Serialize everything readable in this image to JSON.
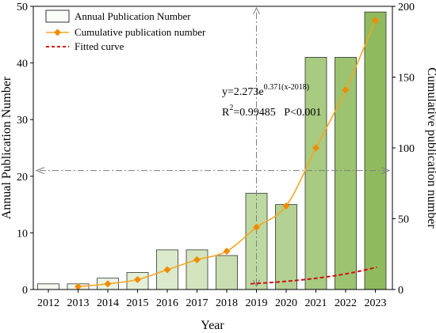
{
  "chart_data": {
    "type": "bar",
    "categories": [
      "2012",
      "2013",
      "2014",
      "2015",
      "2016",
      "2017",
      "2018",
      "2019",
      "2020",
      "2021",
      "2022",
      "2023"
    ],
    "series": [
      {
        "name": "Annual Publication Number",
        "type": "bar",
        "axis": "left",
        "values": [
          1,
          1,
          2,
          3,
          7,
          7,
          6,
          17,
          15,
          41,
          41,
          49
        ]
      },
      {
        "name": "Cumulative publication number",
        "type": "line",
        "axis": "right",
        "marker": "diamond",
        "x": [
          "2013",
          "2014",
          "2015",
          "2016",
          "2017",
          "2018",
          "2019",
          "2020",
          "2021",
          "2022",
          "2023"
        ],
        "values": [
          2,
          4,
          7,
          14,
          21,
          27,
          44,
          59,
          100,
          141,
          190
        ]
      },
      {
        "name": "Fitted curve",
        "type": "line-dashed",
        "axis": "right",
        "formula": "y=2.273e^{0.371(x-2018)}"
      }
    ],
    "xlabel": "Year",
    "ylabel_left": "Annual Publication Number",
    "ylabel_right": "Cumulative publication number",
    "ylim_left": [
      0,
      50
    ],
    "yticks_left": [
      0,
      10,
      20,
      30,
      40,
      50
    ],
    "ylim_right": [
      0,
      200
    ],
    "yticks_right": [
      0,
      50,
      100,
      150,
      200
    ],
    "annotations": {
      "equation_base": "y=2.273e",
      "equation_exp": "0.371(x-2018)",
      "r2_prefix": "R",
      "r2_sup": "2",
      "r2_rest": "=0.99485   P<0.001"
    },
    "reference_lines": {
      "vertical_x": "2019",
      "horizontal_y_left": 21
    },
    "legend": {
      "placement": "top-left"
    },
    "grid": false,
    "colors": {
      "bar_light": "#f4f9ee",
      "bar_dark": "#8fbb5e",
      "bar_edge": "#333333",
      "cumulative_line": "#f5a623",
      "cumulative_marker": "#f08c00",
      "fitted": "#d01010",
      "ref_line": "#7f7f7f"
    }
  }
}
